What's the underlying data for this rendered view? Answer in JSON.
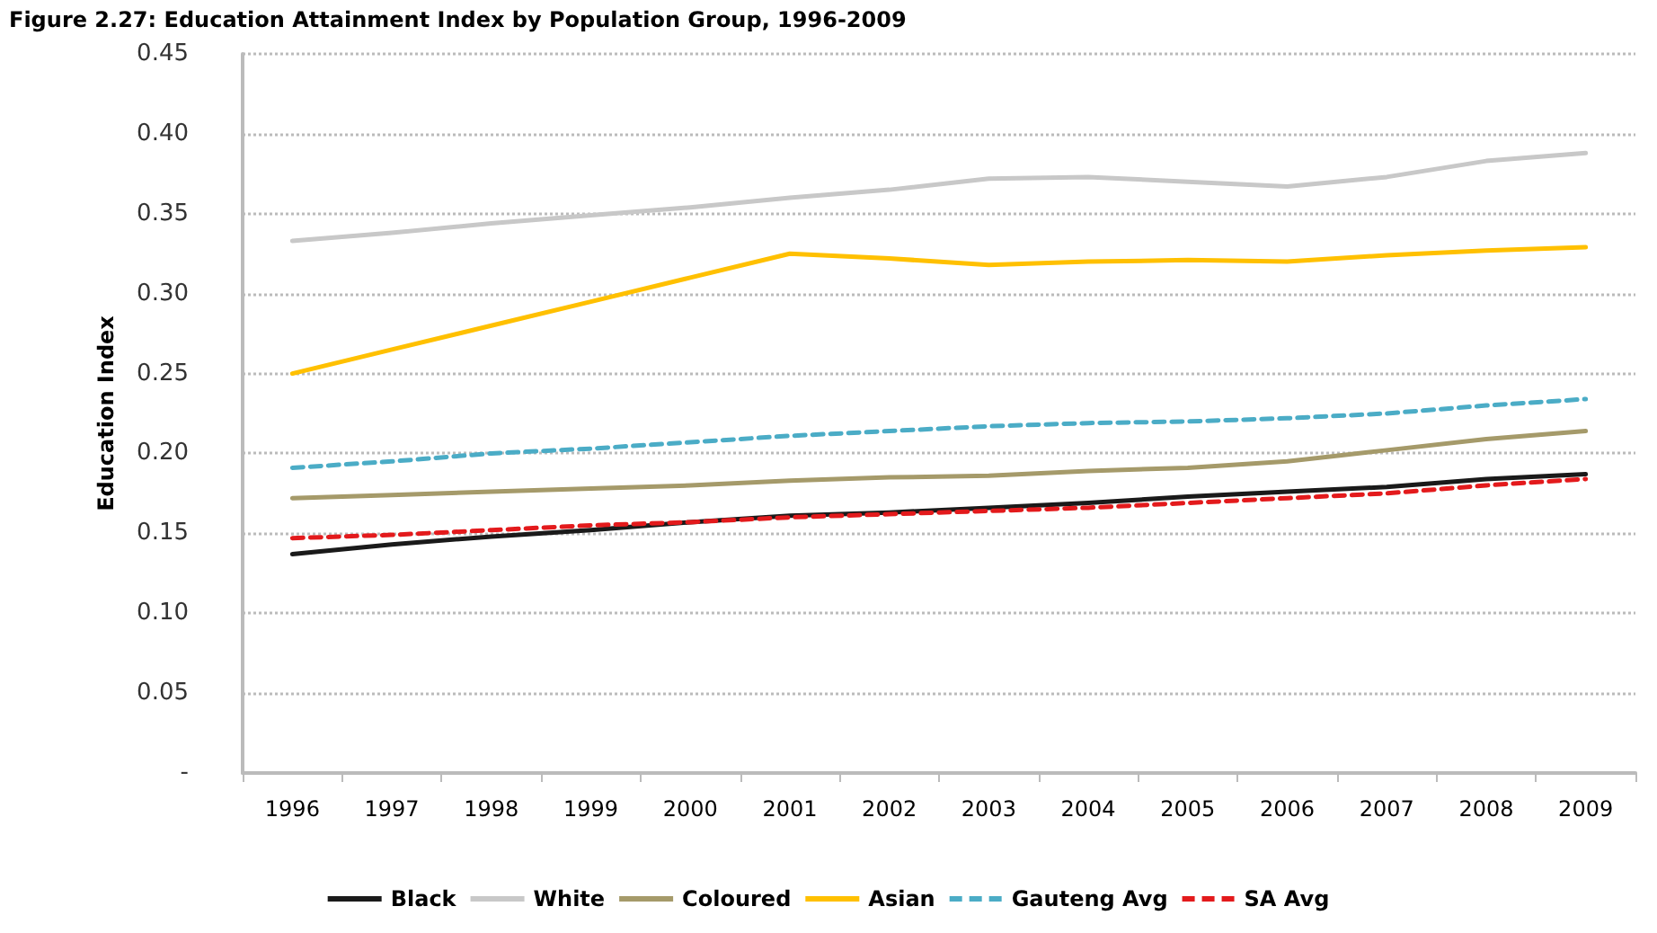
{
  "chart_data": {
    "type": "line",
    "title": "Figure 2.27: Education Attainment Index by Population Group, 1996-2009",
    "ylabel": "Education Index",
    "categories": [
      "1996",
      "1997",
      "1998",
      "1999",
      "2000",
      "2001",
      "2002",
      "2003",
      "2004",
      "2005",
      "2006",
      "2007",
      "2008",
      "2009"
    ],
    "ylim": [
      0,
      0.45
    ],
    "yticks": [
      {
        "value": 0,
        "label": "-"
      },
      {
        "value": 0.05,
        "label": "0.05"
      },
      {
        "value": 0.1,
        "label": "0.10"
      },
      {
        "value": 0.15,
        "label": "0.15"
      },
      {
        "value": 0.2,
        "label": "0.20"
      },
      {
        "value": 0.25,
        "label": "0.25"
      },
      {
        "value": 0.3,
        "label": "0.30"
      },
      {
        "value": 0.35,
        "label": "0.35"
      },
      {
        "value": 0.4,
        "label": "0.40"
      },
      {
        "value": 0.45,
        "label": "0.45"
      }
    ],
    "grid": "y",
    "legend": "bottom",
    "marker": "none",
    "series": [
      {
        "name": "Black",
        "color": "#1a1a1a",
        "line_style": "solid",
        "values": [
          0.137,
          0.143,
          0.148,
          0.152,
          0.157,
          0.161,
          0.163,
          0.166,
          0.169,
          0.173,
          0.176,
          0.179,
          0.184,
          0.187
        ]
      },
      {
        "name": "White",
        "color": "#c8c8c8",
        "line_style": "solid",
        "values": [
          0.333,
          0.338,
          0.344,
          0.349,
          0.354,
          0.36,
          0.365,
          0.372,
          0.373,
          0.37,
          0.367,
          0.373,
          0.383,
          0.388
        ]
      },
      {
        "name": "Coloured",
        "color": "#a59a6a",
        "line_style": "solid",
        "values": [
          0.172,
          0.174,
          0.176,
          0.178,
          0.18,
          0.183,
          0.185,
          0.186,
          0.189,
          0.191,
          0.195,
          0.202,
          0.209,
          0.214
        ]
      },
      {
        "name": "Asian",
        "color": "#ffc000",
        "line_style": "solid",
        "values": [
          0.25,
          0.265,
          0.28,
          0.295,
          0.31,
          0.325,
          0.322,
          0.318,
          0.32,
          0.321,
          0.32,
          0.324,
          0.327,
          0.329
        ]
      },
      {
        "name": "Gauteng Avg",
        "color": "#4bacc6",
        "line_style": "dashed",
        "values": [
          0.191,
          0.195,
          0.2,
          0.203,
          0.207,
          0.211,
          0.214,
          0.217,
          0.219,
          0.22,
          0.222,
          0.225,
          0.23,
          0.234
        ]
      },
      {
        "name": "SA Avg",
        "color": "#e31a1c",
        "line_style": "dashed",
        "values": [
          0.147,
          0.149,
          0.152,
          0.155,
          0.157,
          0.16,
          0.162,
          0.164,
          0.166,
          0.169,
          0.172,
          0.175,
          0.18,
          0.184
        ]
      }
    ]
  }
}
